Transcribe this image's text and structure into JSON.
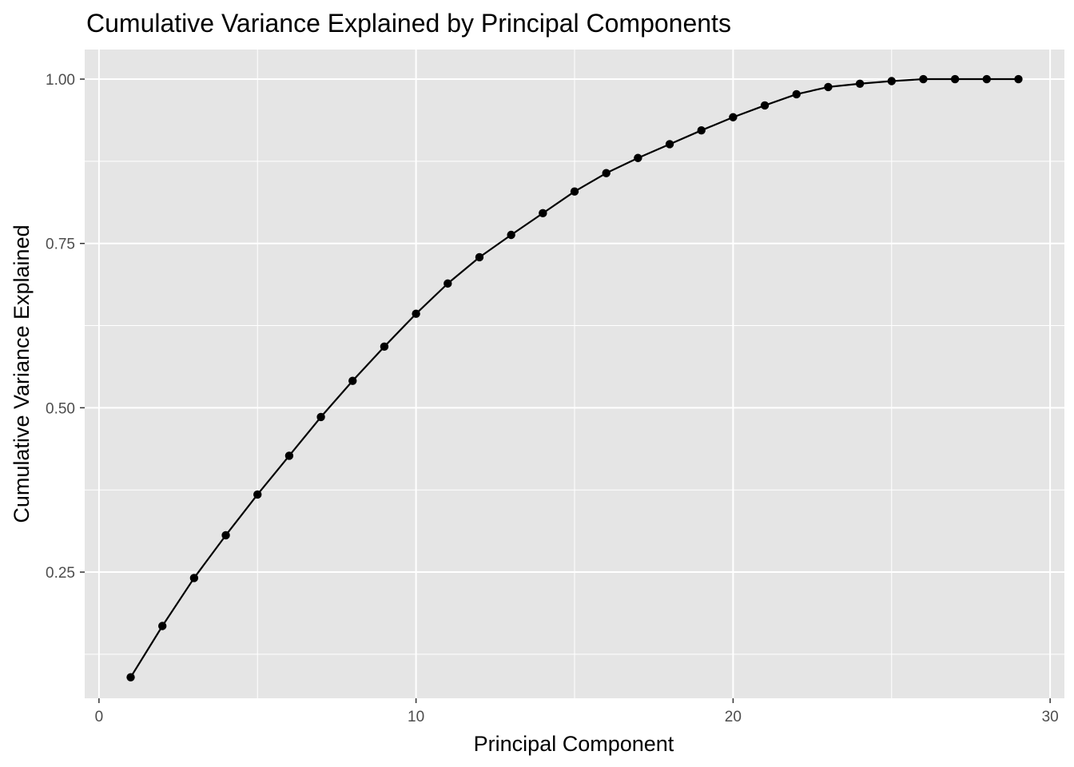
{
  "chart_data": {
    "type": "line",
    "title": "Cumulative Variance Explained by Principal Components",
    "xlabel": "Principal Component",
    "ylabel": "Cumulative Variance Explained",
    "xlim": [
      -0.45,
      30.45
    ],
    "ylim": [
      0.058,
      1.045
    ],
    "x_ticks": [
      {
        "value": 0,
        "label": "0"
      },
      {
        "value": 10,
        "label": "10"
      },
      {
        "value": 20,
        "label": "20"
      },
      {
        "value": 30,
        "label": "30"
      }
    ],
    "x_minor_ticks": [
      5,
      15,
      25
    ],
    "y_ticks": [
      {
        "value": 0.25,
        "label": "0.25"
      },
      {
        "value": 0.5,
        "label": "0.50"
      },
      {
        "value": 0.75,
        "label": "0.75"
      },
      {
        "value": 1.0,
        "label": "1.00"
      }
    ],
    "y_minor_ticks": [
      0.125,
      0.375,
      0.625,
      0.875
    ],
    "grid": true,
    "panel_background": "#e5e5e5",
    "grid_color": "#ffffff",
    "line_color": "#000000",
    "point_color": "#000000",
    "series": [
      {
        "x": [
          1,
          2,
          3,
          4,
          5,
          6,
          7,
          8,
          9,
          10,
          11,
          12,
          13,
          14,
          15,
          16,
          17,
          18,
          19,
          20,
          21,
          22,
          23,
          24,
          25,
          26,
          27,
          28,
          29
        ],
        "values": [
          0.09,
          0.168,
          0.241,
          0.306,
          0.368,
          0.427,
          0.486,
          0.541,
          0.593,
          0.643,
          0.689,
          0.729,
          0.763,
          0.796,
          0.829,
          0.857,
          0.88,
          0.901,
          0.922,
          0.942,
          0.96,
          0.977,
          0.988,
          0.993,
          0.997,
          1.0,
          1.0,
          1.0,
          1.0
        ]
      }
    ]
  }
}
